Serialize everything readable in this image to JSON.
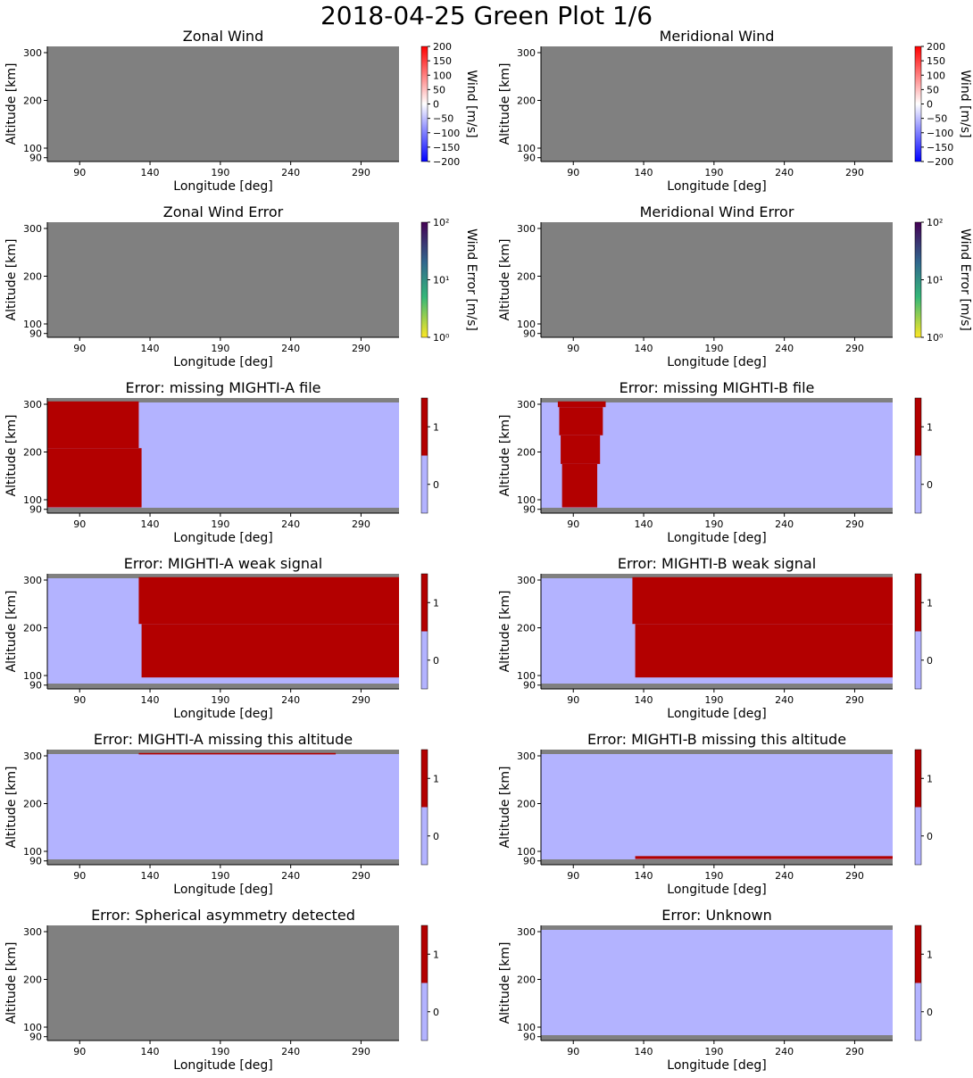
{
  "figure": {
    "title": "2018-04-25 Green Plot 1/6"
  },
  "colors": {
    "nodata": "#808080",
    "flag_off": "#b3b3ff",
    "flag_on": "#b30000",
    "wind_cmap": [
      "#0000ff",
      "#ffffff",
      "#ff0000"
    ],
    "error_cmap": [
      "#fde725",
      "#35b779",
      "#31688e",
      "#440154"
    ]
  },
  "chart_data": [
    {
      "type": "heatmap",
      "title": "Zonal Wind",
      "xlabel": "Longitude [deg]",
      "ylabel": "Altitude [km]",
      "xlim": [
        67,
        317
      ],
      "ylim": [
        86,
        313
      ],
      "xticks": [
        "90",
        "140",
        "190",
        "240",
        "290"
      ],
      "yticks": [
        "90",
        "100",
        "200",
        "300"
      ],
      "background": "nodata",
      "regions": [],
      "colorbar": {
        "kind": "wind",
        "label": "Wind [m/s]",
        "range": [
          -200,
          200
        ],
        "ticks": [
          "200",
          "150",
          "100",
          "50",
          "0",
          "−50",
          "−100",
          "−150",
          "−200"
        ]
      }
    },
    {
      "type": "heatmap",
      "title": "Meridional Wind",
      "xlabel": "Longitude [deg]",
      "ylabel": "Altitude [km]",
      "xlim": [
        67,
        317
      ],
      "ylim": [
        86,
        313
      ],
      "xticks": [
        "90",
        "140",
        "190",
        "240",
        "290"
      ],
      "yticks": [
        "90",
        "100",
        "200",
        "300"
      ],
      "background": "nodata",
      "regions": [],
      "colorbar": {
        "kind": "wind",
        "label": "Wind [m/s]",
        "range": [
          -200,
          200
        ],
        "ticks": [
          "200",
          "150",
          "100",
          "50",
          "0",
          "−50",
          "−100",
          "−150",
          "−200"
        ]
      }
    },
    {
      "type": "heatmap",
      "title": "Zonal Wind Error",
      "xlabel": "Longitude [deg]",
      "ylabel": "Altitude [km]",
      "xlim": [
        67,
        317
      ],
      "ylim": [
        86,
        313
      ],
      "xticks": [
        "90",
        "140",
        "190",
        "240",
        "290"
      ],
      "yticks": [
        "90",
        "100",
        "200",
        "300"
      ],
      "background": "nodata",
      "regions": [],
      "colorbar": {
        "kind": "error",
        "label": "Wind Error [m/s]",
        "range": [
          1,
          100
        ],
        "scale": "log",
        "ticks": [
          "10²",
          "10¹",
          "10⁰"
        ]
      }
    },
    {
      "type": "heatmap",
      "title": "Meridional Wind Error",
      "xlabel": "Longitude [deg]",
      "ylabel": "Altitude [km]",
      "xlim": [
        67,
        317
      ],
      "ylim": [
        86,
        313
      ],
      "xticks": [
        "90",
        "140",
        "190",
        "240",
        "290"
      ],
      "yticks": [
        "90",
        "100",
        "200",
        "300"
      ],
      "background": "nodata",
      "regions": [],
      "colorbar": {
        "kind": "error",
        "label": "Wind Error [m/s]",
        "range": [
          1,
          100
        ],
        "scale": "log",
        "ticks": [
          "10²",
          "10¹",
          "10⁰"
        ]
      }
    },
    {
      "type": "heatmap",
      "title": "Error: missing MIGHTI-A file",
      "xlabel": "Longitude [deg]",
      "ylabel": "Altitude [km]",
      "xlim": [
        67,
        317
      ],
      "ylim": [
        86,
        313
      ],
      "xticks": [
        "90",
        "140",
        "190",
        "240",
        "290"
      ],
      "yticks": [
        "90",
        "100",
        "200",
        "300"
      ],
      "background": "flag_off",
      "bands": true,
      "regions": [
        {
          "lon": [
            67,
            132
          ],
          "alt": [
            208,
            306
          ],
          "value": 1
        },
        {
          "lon": [
            67,
            134
          ],
          "alt": [
            92,
            208
          ],
          "value": 1
        }
      ],
      "colorbar": {
        "kind": "flag",
        "ticks": [
          "1",
          "0"
        ]
      }
    },
    {
      "type": "heatmap",
      "title": "Error: missing MIGHTI-B file",
      "xlabel": "Longitude [deg]",
      "ylabel": "Altitude [km]",
      "xlim": [
        67,
        317
      ],
      "ylim": [
        86,
        313
      ],
      "xticks": [
        "90",
        "140",
        "190",
        "240",
        "290"
      ],
      "yticks": [
        "90",
        "100",
        "200",
        "300"
      ],
      "background": "flag_off",
      "bands": true,
      "regions": [
        {
          "lon": [
            79,
            113
          ],
          "alt": [
            294,
            306
          ],
          "value": 1
        },
        {
          "lon": [
            80,
            111
          ],
          "alt": [
            235,
            294
          ],
          "value": 1
        },
        {
          "lon": [
            81,
            109
          ],
          "alt": [
            175,
            235
          ],
          "value": 1
        },
        {
          "lon": [
            82,
            107
          ],
          "alt": [
            92,
            175
          ],
          "value": 1
        }
      ],
      "colorbar": {
        "kind": "flag",
        "ticks": [
          "1",
          "0"
        ]
      }
    },
    {
      "type": "heatmap",
      "title": "Error: MIGHTI-A weak signal",
      "xlabel": "Longitude [deg]",
      "ylabel": "Altitude [km]",
      "xlim": [
        67,
        317
      ],
      "ylim": [
        86,
        313
      ],
      "xticks": [
        "90",
        "140",
        "190",
        "240",
        "290"
      ],
      "yticks": [
        "90",
        "100",
        "200",
        "300"
      ],
      "background": "flag_off",
      "bands": true,
      "regions": [
        {
          "lon": [
            132,
            317
          ],
          "alt": [
            208,
            306
          ],
          "value": 1
        },
        {
          "lon": [
            134,
            317
          ],
          "alt": [
            98,
            208
          ],
          "value": 1
        }
      ],
      "colorbar": {
        "kind": "flag",
        "ticks": [
          "1",
          "0"
        ]
      }
    },
    {
      "type": "heatmap",
      "title": "Error: MIGHTI-B weak signal",
      "xlabel": "Longitude [deg]",
      "ylabel": "Altitude [km]",
      "xlim": [
        67,
        317
      ],
      "ylim": [
        86,
        313
      ],
      "xticks": [
        "90",
        "140",
        "190",
        "240",
        "290"
      ],
      "yticks": [
        "90",
        "100",
        "200",
        "300"
      ],
      "background": "flag_off",
      "bands": true,
      "regions": [
        {
          "lon": [
            132,
            317
          ],
          "alt": [
            208,
            306
          ],
          "value": 1
        },
        {
          "lon": [
            134,
            317
          ],
          "alt": [
            98,
            208
          ],
          "value": 1
        }
      ],
      "colorbar": {
        "kind": "flag",
        "ticks": [
          "1",
          "0"
        ]
      }
    },
    {
      "type": "heatmap",
      "title": "Error: MIGHTI-A missing this altitude",
      "xlabel": "Longitude [deg]",
      "ylabel": "Altitude [km]",
      "xlim": [
        67,
        317
      ],
      "ylim": [
        86,
        313
      ],
      "xticks": [
        "90",
        "140",
        "190",
        "240",
        "290"
      ],
      "yticks": [
        "90",
        "100",
        "200",
        "300"
      ],
      "background": "flag_off",
      "bands": true,
      "regions": [
        {
          "lon": [
            132,
            272
          ],
          "alt": [
            303,
            306
          ],
          "value": 1
        }
      ],
      "colorbar": {
        "kind": "flag",
        "ticks": [
          "1",
          "0"
        ]
      }
    },
    {
      "type": "heatmap",
      "title": "Error: MIGHTI-B missing this altitude",
      "xlabel": "Longitude [deg]",
      "ylabel": "Altitude [km]",
      "xlim": [
        67,
        317
      ],
      "ylim": [
        86,
        313
      ],
      "xticks": [
        "90",
        "140",
        "190",
        "240",
        "290"
      ],
      "yticks": [
        "90",
        "100",
        "200",
        "300"
      ],
      "background": "flag_off",
      "bands": true,
      "regions": [
        {
          "lon": [
            134,
            317
          ],
          "alt": [
            92,
            95
          ],
          "value": 1
        }
      ],
      "colorbar": {
        "kind": "flag",
        "ticks": [
          "1",
          "0"
        ]
      }
    },
    {
      "type": "heatmap",
      "title": "Error: Spherical asymmetry detected",
      "xlabel": "Longitude [deg]",
      "ylabel": "Altitude [km]",
      "xlim": [
        67,
        317
      ],
      "ylim": [
        86,
        313
      ],
      "xticks": [
        "90",
        "140",
        "190",
        "240",
        "290"
      ],
      "yticks": [
        "90",
        "100",
        "200",
        "300"
      ],
      "background": "nodata",
      "regions": [],
      "colorbar": {
        "kind": "flag",
        "ticks": [
          "1",
          "0"
        ]
      }
    },
    {
      "type": "heatmap",
      "title": "Error: Unknown",
      "xlabel": "Longitude [deg]",
      "ylabel": "Altitude [km]",
      "xlim": [
        67,
        317
      ],
      "ylim": [
        86,
        313
      ],
      "xticks": [
        "90",
        "140",
        "190",
        "240",
        "290"
      ],
      "yticks": [
        "90",
        "100",
        "200",
        "300"
      ],
      "background": "flag_off",
      "bands": true,
      "regions": [],
      "colorbar": {
        "kind": "flag",
        "ticks": [
          "1",
          "0"
        ]
      }
    }
  ]
}
